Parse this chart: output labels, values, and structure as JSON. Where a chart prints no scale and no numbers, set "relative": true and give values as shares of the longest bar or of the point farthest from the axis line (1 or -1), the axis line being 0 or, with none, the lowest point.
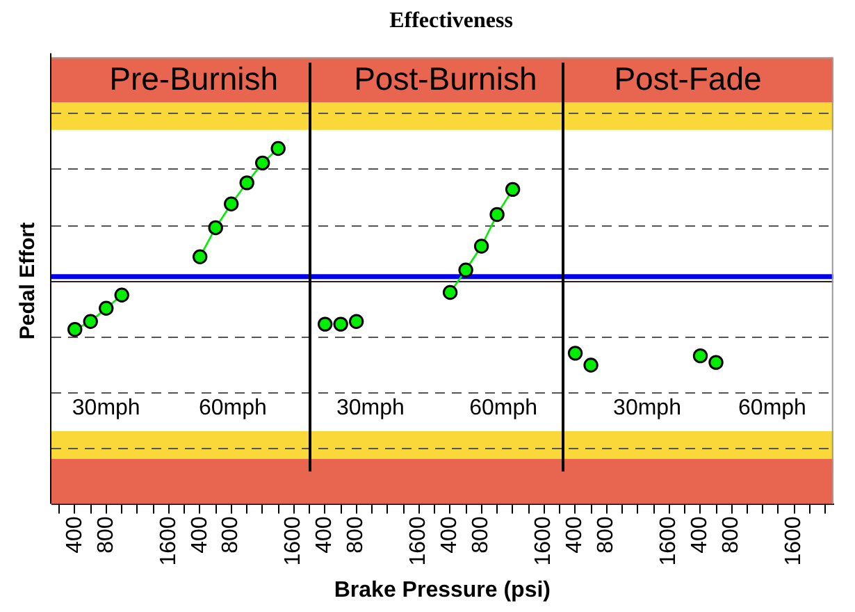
{
  "chart_data": {
    "type": "scatter",
    "title": "Effectiveness",
    "xlabel": "Brake Pressure (psi)",
    "ylabel": "Pedal Effort",
    "relative": true,
    "marker": "circle",
    "legend": false,
    "grid": "y",
    "categories": [
      null,
      "400",
      null,
      "800",
      null,
      null,
      null,
      "1600",
      null,
      "400",
      null,
      "800",
      null,
      null,
      null,
      "1600",
      null,
      "400",
      null,
      "800",
      null,
      null,
      null,
      "1600",
      null,
      "400",
      null,
      "800",
      null,
      null,
      null,
      "1600",
      null,
      "400",
      null,
      "800",
      null,
      null,
      null,
      "1600",
      null,
      "400",
      null,
      "800",
      null,
      null,
      null,
      "1600",
      null,
      null
    ],
    "series": [
      {
        "type": "line",
        "color": "#00ee00",
        "values": [
          null,
          -0.37,
          -0.31,
          -0.21,
          -0.11,
          null,
          null,
          null,
          null,
          null,
          null,
          null,
          null,
          null,
          null,
          null,
          null,
          null,
          null,
          null,
          null,
          null,
          null,
          null,
          null,
          null,
          null,
          null,
          null,
          null,
          null,
          null,
          null,
          null,
          null,
          null,
          null,
          null,
          null,
          null,
          null,
          null,
          null,
          null,
          null,
          null,
          null,
          null,
          null,
          null
        ]
      },
      {
        "type": "line",
        "color": "#00ee00",
        "values": [
          null,
          null,
          null,
          null,
          null,
          null,
          null,
          null,
          null,
          0.18,
          0.4,
          0.58,
          0.74,
          0.89,
          1.0,
          null,
          null,
          null,
          null,
          null,
          null,
          null,
          null,
          null,
          null,
          null,
          null,
          null,
          null,
          null,
          null,
          null,
          null,
          null,
          null,
          null,
          null,
          null,
          null,
          null,
          null,
          null,
          null,
          null,
          null,
          null,
          null,
          null,
          null,
          null
        ]
      },
      {
        "type": "scatter",
        "color": "#00ee00",
        "values": [
          null,
          null,
          null,
          null,
          null,
          null,
          null,
          null,
          null,
          null,
          null,
          null,
          null,
          null,
          null,
          null,
          null,
          -0.33,
          -0.33,
          -0.31,
          null,
          null,
          null,
          null,
          null,
          null,
          null,
          null,
          null,
          null,
          null,
          null,
          null,
          null,
          null,
          null,
          null,
          null,
          null,
          null,
          null,
          null,
          null,
          null,
          null,
          null,
          null,
          null,
          null,
          null
        ]
      },
      {
        "type": "line",
        "color": "#00ee00",
        "values": [
          null,
          null,
          null,
          null,
          null,
          null,
          null,
          null,
          null,
          null,
          null,
          null,
          null,
          null,
          null,
          null,
          null,
          null,
          null,
          null,
          null,
          null,
          null,
          null,
          null,
          -0.09,
          0.08,
          0.26,
          0.5,
          0.69,
          null,
          null,
          null,
          null,
          null,
          null,
          null,
          null,
          null,
          null,
          null,
          null,
          null,
          null,
          null,
          null,
          null,
          null,
          null,
          null
        ]
      },
      {
        "type": "scatter",
        "color": "#00ee00",
        "values": [
          null,
          null,
          null,
          null,
          null,
          null,
          null,
          null,
          null,
          null,
          null,
          null,
          null,
          null,
          null,
          null,
          null,
          null,
          null,
          null,
          null,
          null,
          null,
          null,
          null,
          null,
          null,
          null,
          null,
          null,
          null,
          null,
          null,
          -0.55,
          -0.64,
          null,
          null,
          null,
          null,
          null,
          null,
          null,
          null,
          null,
          null,
          null,
          null,
          null,
          null,
          null
        ]
      },
      {
        "type": "scatter",
        "color": "#00ee00",
        "values": [
          null,
          null,
          null,
          null,
          null,
          null,
          null,
          null,
          null,
          null,
          null,
          null,
          null,
          null,
          null,
          null,
          null,
          null,
          null,
          null,
          null,
          null,
          null,
          null,
          null,
          null,
          null,
          null,
          null,
          null,
          null,
          null,
          null,
          null,
          null,
          null,
          null,
          null,
          null,
          null,
          null,
          -0.57,
          -0.62,
          null,
          null,
          null,
          null,
          null,
          null,
          null
        ]
      }
    ],
    "ref_lines": [
      {
        "axis": "y",
        "value": 0.03,
        "color": "#0000ee"
      }
    ],
    "bands": [
      {
        "axis": "y",
        "from": 1.35,
        "to": 1.69,
        "color": "#e8664f"
      },
      {
        "axis": "y",
        "from": 1.14,
        "to": 1.35,
        "color": "#fbd83a"
      },
      {
        "axis": "y",
        "from": -1.14,
        "to": -1.35,
        "color": "#fbd83a"
      },
      {
        "axis": "y",
        "from": -1.35,
        "to": -1.69,
        "color": "#e8664f"
      }
    ],
    "annotations": [
      "Pre-Burnish",
      "Post-Burnish",
      "Post-Fade",
      "30mph",
      "60mph",
      "30mph",
      "60mph",
      "30mph",
      "60mph"
    ]
  }
}
